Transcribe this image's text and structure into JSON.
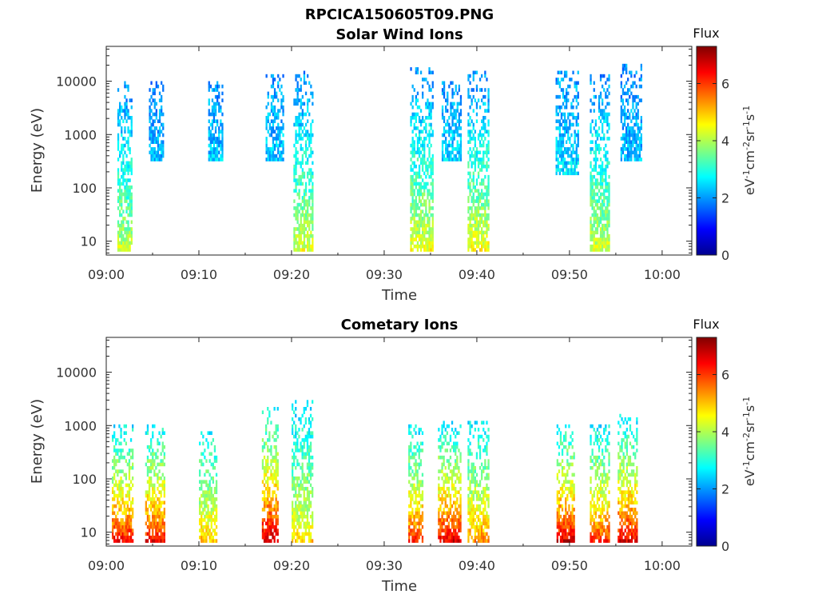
{
  "figure_title": "RPCICA150605T09.PNG",
  "colorbar_title": "Flux",
  "colorbar_unit": "eV-1cm-2sr-1s-1",
  "colormap": [
    "#00008f",
    "#0000ff",
    "#0080ff",
    "#00ffff",
    "#80ff80",
    "#ffff00",
    "#ff8000",
    "#ff0000",
    "#800000"
  ],
  "chart_data": [
    {
      "type": "heatmap",
      "title": "Solar Wind Ions",
      "xlabel": "Time",
      "ylabel": "Energy (eV)",
      "x_ticks": [
        "09:00",
        "09:10",
        "09:20",
        "09:30",
        "09:40",
        "09:50",
        "10:00"
      ],
      "xlim_minutes": [
        0,
        63.2
      ],
      "y_scale": "log",
      "ylim": [
        5.5,
        45000
      ],
      "y_ticks": [
        "10",
        "100",
        "1000",
        "10000"
      ],
      "colorbar": {
        "title": "Flux",
        "min": 0,
        "max": 7.3,
        "ticks": [
          "0",
          "2",
          "4",
          "6"
        ]
      },
      "bursts": [
        {
          "t_start": 1.2,
          "t_end": 2.8,
          "e_min": 6,
          "e_max": 10000,
          "flux_low_energy": 4.3,
          "flux_high_energy": 1.9
        },
        {
          "t_start": 4.6,
          "t_end": 6.2,
          "e_min": 300,
          "e_max": 9000,
          "flux_low_energy": 2.3,
          "flux_high_energy": 1.9
        },
        {
          "t_start": 11.0,
          "t_end": 12.5,
          "e_min": 300,
          "e_max": 9000,
          "flux_low_energy": 2.4,
          "flux_high_energy": 2.0
        },
        {
          "t_start": 17.2,
          "t_end": 19.0,
          "e_min": 300,
          "e_max": 12000,
          "flux_low_energy": 2.4,
          "flux_high_energy": 2.0
        },
        {
          "t_start": 20.2,
          "t_end": 22.3,
          "e_min": 6,
          "e_max": 15000,
          "flux_low_energy": 4.4,
          "flux_high_energy": 1.9
        },
        {
          "t_start": 32.8,
          "t_end": 35.2,
          "e_min": 6,
          "e_max": 17000,
          "flux_low_energy": 4.6,
          "flux_high_energy": 1.9
        },
        {
          "t_start": 36.2,
          "t_end": 38.3,
          "e_min": 300,
          "e_max": 9000,
          "flux_low_energy": 2.5,
          "flux_high_energy": 2.0
        },
        {
          "t_start": 39.0,
          "t_end": 41.2,
          "e_min": 6,
          "e_max": 15000,
          "flux_low_energy": 4.7,
          "flux_high_energy": 1.9
        },
        {
          "t_start": 48.5,
          "t_end": 51.0,
          "e_min": 150,
          "e_max": 15000,
          "flux_low_energy": 2.6,
          "flux_high_energy": 2.0
        },
        {
          "t_start": 52.2,
          "t_end": 54.2,
          "e_min": 6,
          "e_max": 12000,
          "flux_low_energy": 4.4,
          "flux_high_energy": 1.9
        },
        {
          "t_start": 55.5,
          "t_end": 57.8,
          "e_min": 300,
          "e_max": 20000,
          "flux_low_energy": 2.3,
          "flux_high_energy": 1.9
        }
      ]
    },
    {
      "type": "heatmap",
      "title": "Cometary Ions",
      "xlabel": "Time",
      "ylabel": "Energy (eV)",
      "x_ticks": [
        "09:00",
        "09:10",
        "09:20",
        "09:30",
        "09:40",
        "09:50",
        "10:00"
      ],
      "xlim_minutes": [
        0,
        63.2
      ],
      "y_scale": "log",
      "ylim": [
        5.5,
        45000
      ],
      "y_ticks": [
        "10",
        "100",
        "1000",
        "10000"
      ],
      "colorbar": {
        "title": "Flux",
        "min": 0,
        "max": 7.3,
        "ticks": [
          "0",
          "2",
          "4",
          "6"
        ]
      },
      "bursts": [
        {
          "t_start": 0.6,
          "t_end": 2.8,
          "e_min": 6,
          "e_max": 1000,
          "flux_low_energy": 6.6,
          "flux_high_energy": 2.6
        },
        {
          "t_start": 4.2,
          "t_end": 6.2,
          "e_min": 6,
          "e_max": 1000,
          "flux_low_energy": 6.7,
          "flux_high_energy": 2.6
        },
        {
          "t_start": 10.0,
          "t_end": 11.8,
          "e_min": 6,
          "e_max": 700,
          "flux_low_energy": 5.2,
          "flux_high_energy": 2.7
        },
        {
          "t_start": 16.8,
          "t_end": 18.5,
          "e_min": 6,
          "e_max": 2000,
          "flux_low_energy": 7.1,
          "flux_high_energy": 2.7
        },
        {
          "t_start": 20.0,
          "t_end": 22.3,
          "e_min": 6,
          "e_max": 3000,
          "flux_low_energy": 5.0,
          "flux_high_energy": 2.4
        },
        {
          "t_start": 32.6,
          "t_end": 34.2,
          "e_min": 6,
          "e_max": 1000,
          "flux_low_energy": 6.4,
          "flux_high_energy": 2.5
        },
        {
          "t_start": 35.8,
          "t_end": 38.3,
          "e_min": 6,
          "e_max": 1200,
          "flux_low_energy": 6.8,
          "flux_high_energy": 2.6
        },
        {
          "t_start": 39.0,
          "t_end": 41.2,
          "e_min": 6,
          "e_max": 1200,
          "flux_low_energy": 5.6,
          "flux_high_energy": 2.6
        },
        {
          "t_start": 48.6,
          "t_end": 50.5,
          "e_min": 6,
          "e_max": 1000,
          "flux_low_energy": 6.9,
          "flux_high_energy": 2.7
        },
        {
          "t_start": 52.2,
          "t_end": 54.3,
          "e_min": 6,
          "e_max": 1000,
          "flux_low_energy": 6.3,
          "flux_high_energy": 2.6
        },
        {
          "t_start": 55.2,
          "t_end": 57.2,
          "e_min": 6,
          "e_max": 1500,
          "flux_low_energy": 6.8,
          "flux_high_energy": 2.6
        }
      ]
    }
  ]
}
